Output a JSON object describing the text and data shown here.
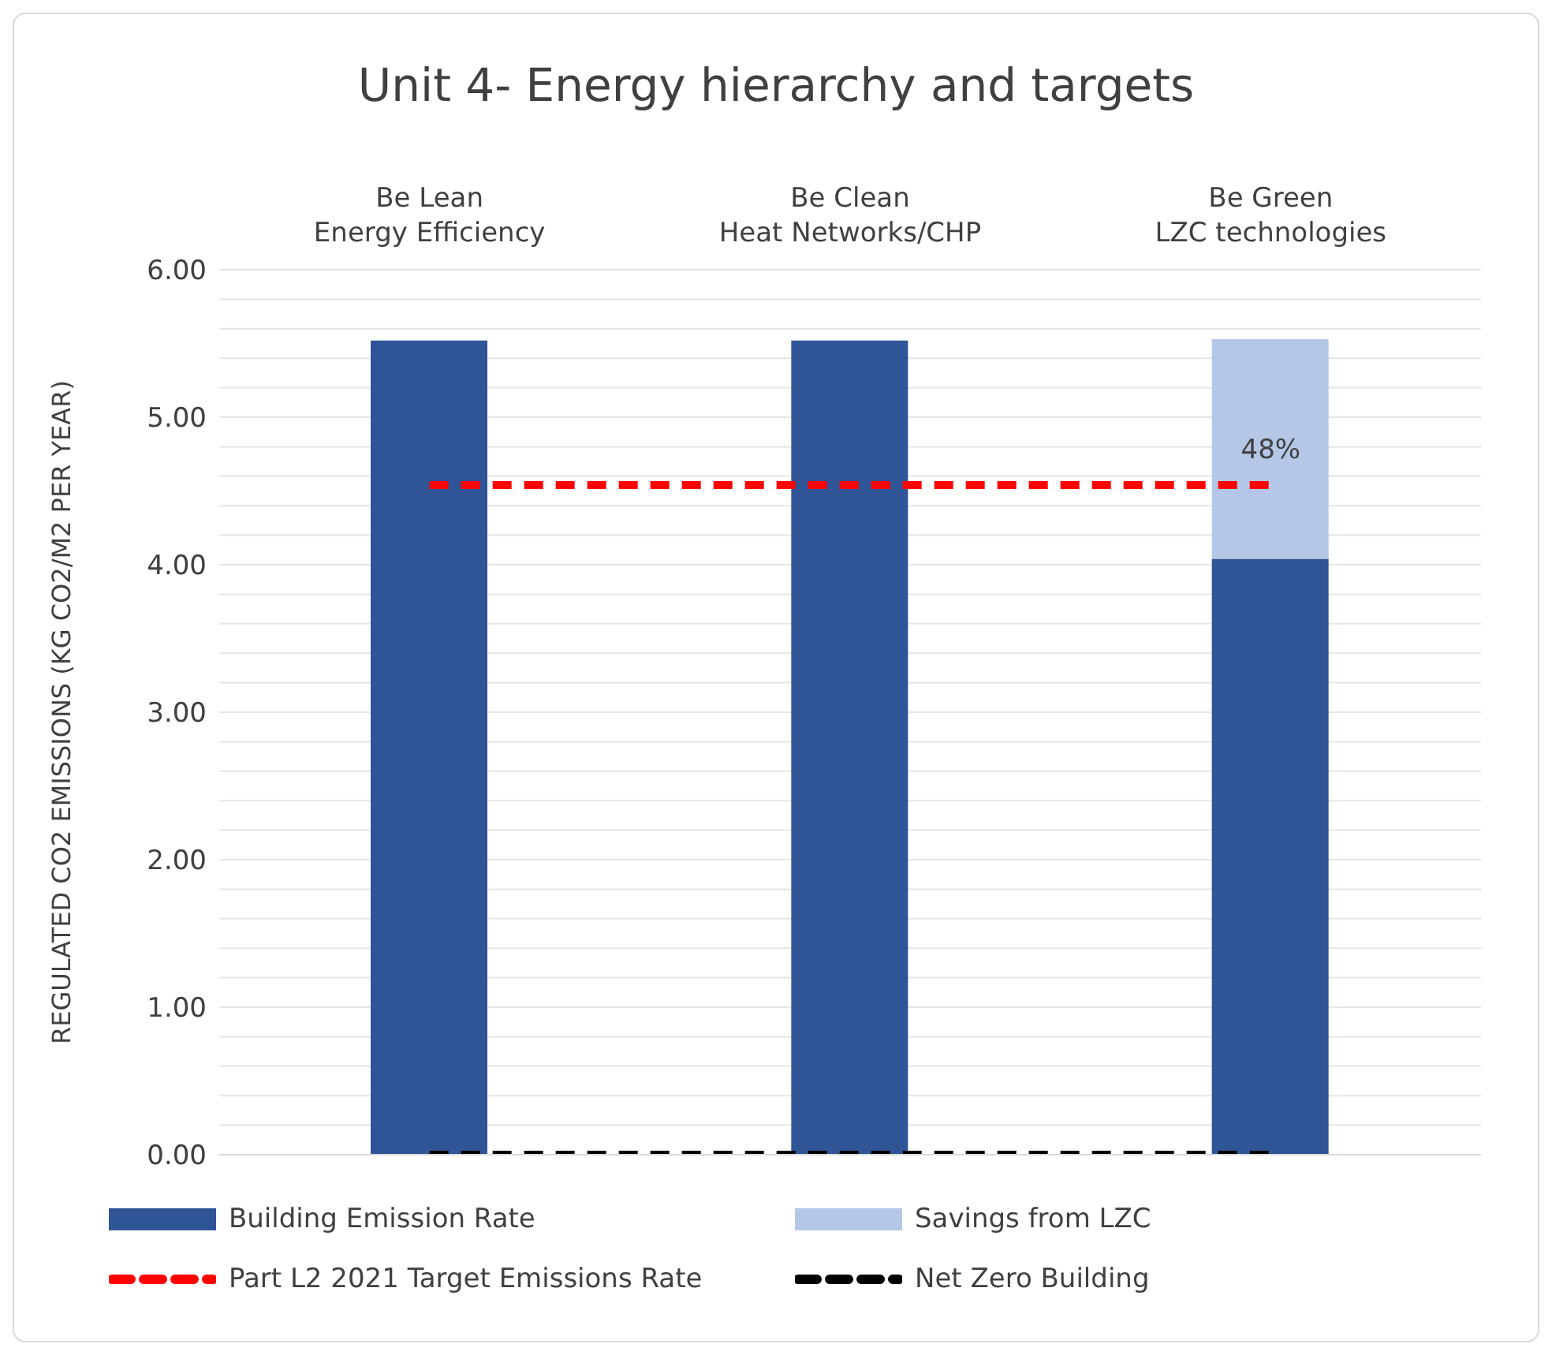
{
  "chart_data": {
    "type": "bar",
    "title": "Unit 4- Energy hierarchy and targets",
    "ylabel": "REGULATED CO2 EMISSIONS (KG CO2/M2 PER YEAR)",
    "categories": [
      "Be Lean\nEnergy Efficiency",
      "Be Clean\nHeat Networks/CHP",
      "Be Green\nLZC technologies"
    ],
    "stacked": true,
    "series": [
      {
        "name": "Building Emission Rate",
        "color": "#2f5597",
        "values": [
          5.52,
          5.52,
          4.04
        ]
      },
      {
        "name": "Savings from LZC",
        "color": "#b4c7e7",
        "values": [
          null,
          null,
          1.49
        ]
      },
      {
        "name": "Part L2 2021 Target Emissions Rate",
        "type": "line",
        "color": "#ff0000",
        "line_style": "dashed",
        "values": [
          4.54,
          4.54,
          4.54
        ]
      },
      {
        "name": "Net Zero Building",
        "type": "line",
        "color": "#000000",
        "line_style": "dashed",
        "values": [
          0,
          0,
          0
        ]
      }
    ],
    "ylim": [
      0,
      6
    ],
    "yticks": [
      {
        "value": 0,
        "label": "0.00"
      },
      {
        "value": 0.2,
        "label": null
      },
      {
        "value": 0.4,
        "label": null
      },
      {
        "value": 0.6,
        "label": null
      },
      {
        "value": 0.8,
        "label": null
      },
      {
        "value": 1,
        "label": "1.00"
      },
      {
        "value": 1.2,
        "label": null
      },
      {
        "value": 1.4,
        "label": null
      },
      {
        "value": 1.6,
        "label": null
      },
      {
        "value": 1.8,
        "label": null
      },
      {
        "value": 2,
        "label": "2.00"
      },
      {
        "value": 2.2,
        "label": null
      },
      {
        "value": 2.4,
        "label": null
      },
      {
        "value": 2.6,
        "label": null
      },
      {
        "value": 2.8,
        "label": null
      },
      {
        "value": 3,
        "label": "3.00"
      },
      {
        "value": 3.2,
        "label": null
      },
      {
        "value": 3.4,
        "label": null
      },
      {
        "value": 3.6,
        "label": null
      },
      {
        "value": 3.8,
        "label": null
      },
      {
        "value": 4,
        "label": "4.00"
      },
      {
        "value": 4.2,
        "label": null
      },
      {
        "value": 4.4,
        "label": null
      },
      {
        "value": 4.6,
        "label": null
      },
      {
        "value": 4.8,
        "label": null
      },
      {
        "value": 5,
        "label": "5.00"
      },
      {
        "value": 5.2,
        "label": null
      },
      {
        "value": 5.4,
        "label": null
      },
      {
        "value": 5.6,
        "label": null
      },
      {
        "value": 5.8,
        "label": null
      },
      {
        "value": 6,
        "label": "6.00"
      }
    ],
    "annotations": [
      "48%"
    ],
    "grid": "y",
    "legend": "bottom",
    "marker": "none"
  }
}
